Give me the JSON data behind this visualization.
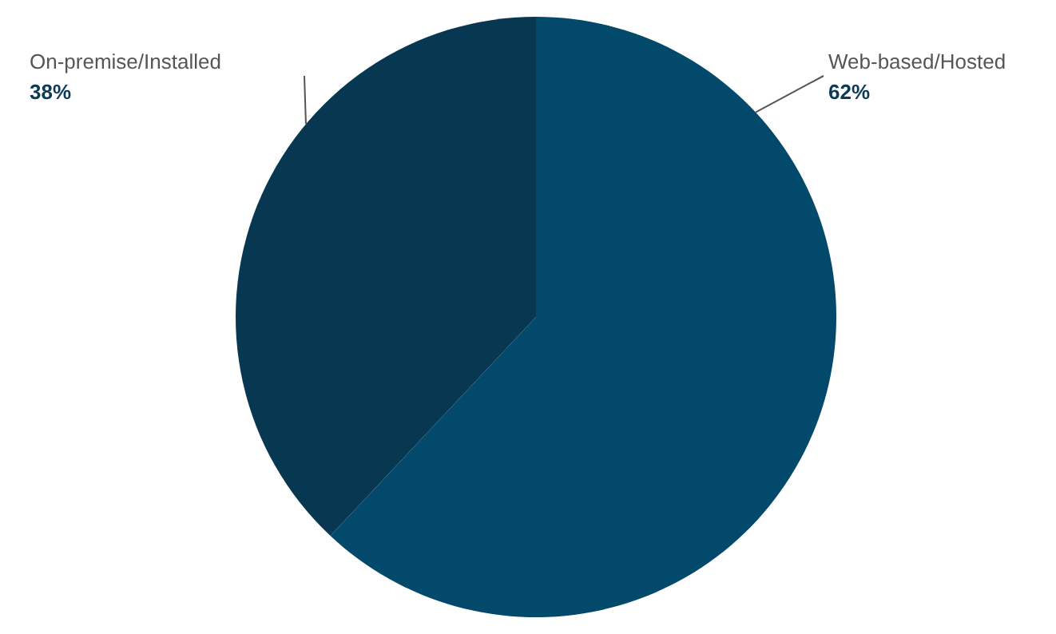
{
  "chart_data": {
    "type": "pie",
    "categories": [
      "Web-based/Hosted",
      "On-premise/Installed"
    ],
    "values": [
      62,
      38
    ],
    "colors": [
      "#02496c",
      "#083851"
    ],
    "value_labels": [
      "62%",
      "38%"
    ]
  }
}
